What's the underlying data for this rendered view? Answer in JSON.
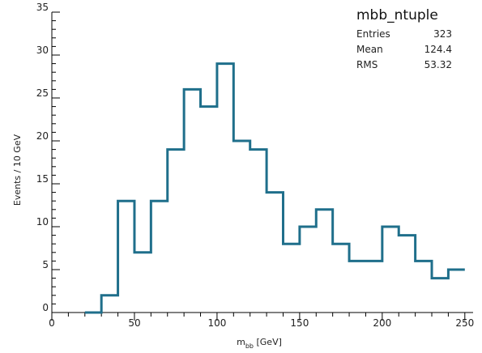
{
  "chart_data": {
    "type": "histogram",
    "bin_width": 10,
    "bins": [
      {
        "x": 20,
        "value": 0
      },
      {
        "x": 30,
        "value": 2
      },
      {
        "x": 40,
        "value": 13
      },
      {
        "x": 50,
        "value": 7
      },
      {
        "x": 60,
        "value": 13
      },
      {
        "x": 70,
        "value": 19
      },
      {
        "x": 80,
        "value": 26
      },
      {
        "x": 90,
        "value": 24
      },
      {
        "x": 100,
        "value": 29
      },
      {
        "x": 110,
        "value": 20
      },
      {
        "x": 120,
        "value": 19
      },
      {
        "x": 130,
        "value": 14
      },
      {
        "x": 140,
        "value": 8
      },
      {
        "x": 150,
        "value": 10
      },
      {
        "x": 160,
        "value": 12
      },
      {
        "x": 170,
        "value": 8
      },
      {
        "x": 180,
        "value": 6
      },
      {
        "x": 190,
        "value": 6
      },
      {
        "x": 200,
        "value": 10
      },
      {
        "x": 210,
        "value": 9
      },
      {
        "x": 220,
        "value": 6
      },
      {
        "x": 230,
        "value": 4
      },
      {
        "x": 240,
        "value": 5
      }
    ],
    "xlim": [
      0,
      255
    ],
    "ylim": [
      0,
      35
    ],
    "xticks": [
      0,
      50,
      100,
      150,
      200,
      250
    ],
    "yticks": [
      0,
      5,
      10,
      15,
      20,
      25,
      30,
      35
    ],
    "xlabel": "m",
    "xlabel_sub": "bb",
    "xlabel_unit": " [GeV]",
    "ylabel": "Events / 10 GeV",
    "line_color": "#1f6f8b",
    "stats_box": {
      "title": "mbb_ntuple",
      "rows": [
        {
          "label": "Entries",
          "value": "323"
        },
        {
          "label": "Mean",
          "value": "124.4"
        },
        {
          "label": "RMS",
          "value": "53.32"
        }
      ]
    }
  }
}
